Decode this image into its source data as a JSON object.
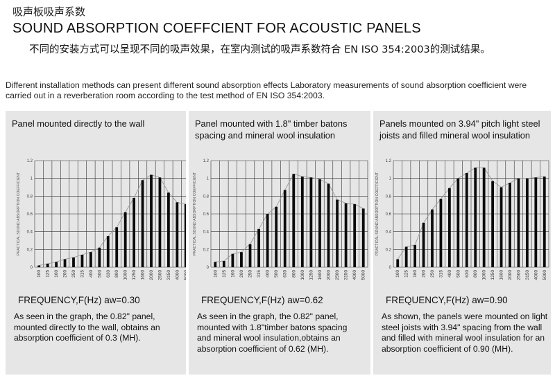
{
  "header": {
    "cn_title": "吸声板吸声系数",
    "en_title": "SOUND ABSORPTION COEFFCIENT FOR  ACOUSTIC PANELS",
    "cn_description": "不同的安装方式可以呈现不同的吸声效果，在室内测试的吸声系数符合 EN ISO 354:2003的测试结果。",
    "en_description": "Different installation methods can present different sound absorption effects Laboratory measurements of sound absorption coefficient were carried out in a reverberation room according to the test method of EN ISO 354:2003."
  },
  "colors": {
    "panel_bg": "#e6e6e6",
    "bar": "#0a0a0a",
    "grid": "#333333",
    "line": "#999999"
  },
  "chart_data": [
    {
      "type": "bar",
      "title": "Panel mounted directly to the wall",
      "ylabel": "PRACTICAL SOUND ABSORPTION COEFFICIENT",
      "xlabel": "FREQUENCY,F(Hz)  aw=0.30",
      "categories": [
        "100",
        "125",
        "160",
        "200",
        "250",
        "315",
        "400",
        "500",
        "630",
        "800",
        "1000",
        "1250",
        "1600",
        "2000",
        "2500",
        "3150",
        "4000",
        "5000"
      ],
      "values": [
        0.02,
        0.04,
        0.06,
        0.09,
        0.11,
        0.14,
        0.17,
        0.22,
        0.35,
        0.45,
        0.62,
        0.78,
        0.98,
        1.04,
        1.01,
        0.84,
        0.73,
        0.71
      ],
      "yticks": [
        "0",
        "0.2",
        "0.4",
        "0.6",
        "0.8",
        "1",
        "1.2"
      ],
      "ylim": [
        0,
        1.2
      ],
      "grid": true,
      "caption": "As seen in the graph, the 0.82\" panel, mounted directly to the wall, obtains an absorption coefficient of 0.3 (MH)."
    },
    {
      "type": "bar",
      "title": "Panel mounted with 1.8\" timber batons spacing and mineral wool insulation",
      "ylabel": "PRACTICAL SOUND ABSORPTION COEFFICIENT",
      "xlabel": "FREQUENCY,F(Hz)  aw=0.62",
      "categories": [
        "100",
        "125",
        "160",
        "200",
        "250",
        "315",
        "400",
        "500",
        "630",
        "800",
        "1000",
        "1250",
        "1600",
        "2000",
        "2500",
        "3150",
        "4000",
        "5000"
      ],
      "values": [
        0.06,
        0.07,
        0.15,
        0.17,
        0.26,
        0.43,
        0.6,
        0.68,
        0.87,
        1.05,
        1.02,
        1.01,
        0.99,
        0.94,
        0.76,
        0.72,
        0.71,
        0.66
      ],
      "yticks": [
        "0",
        "0.2",
        "0.4",
        "0.6",
        "0.8",
        "1",
        "1.2"
      ],
      "ylim": [
        0,
        1.2
      ],
      "grid": true,
      "caption": "As seen in the graph, the 0.82\" panel, mounted with 1.8\"timber batons spacing and mineral wool insulation,obtains an absorption coefficient of 0.62 (MH)."
    },
    {
      "type": "bar",
      "title": "Panels mounted on 3.94\" pitch light steel joists and filled mineral wool insulation",
      "ylabel": "PRACTICAL SOUND ABSORPTION COEFFICIENT",
      "xlabel": "FREQUENCY,F(Hz)  aw=0.90",
      "categories": [
        "100",
        "125",
        "160",
        "200",
        "250",
        "315",
        "400",
        "500",
        "630",
        "800",
        "1000",
        "1250",
        "1600",
        "2000",
        "2500",
        "3150",
        "4000",
        "5000"
      ],
      "values": [
        0.09,
        0.23,
        0.25,
        0.5,
        0.65,
        0.77,
        0.89,
        1.0,
        1.06,
        1.12,
        1.12,
        0.97,
        0.9,
        0.95,
        1.0,
        1.0,
        1.01,
        1.02
      ],
      "yticks": [
        "0",
        "0.2",
        "0.4",
        "0.6",
        "0.8",
        "1",
        "1.2"
      ],
      "ylim": [
        0,
        1.2
      ],
      "grid": true,
      "caption": "As shown, the panels were mounted on light steel joists with 3.94\" spacing from the wall and filled with mineral wool insulation for an absorption coefficient of 0.90 (MH)."
    }
  ]
}
